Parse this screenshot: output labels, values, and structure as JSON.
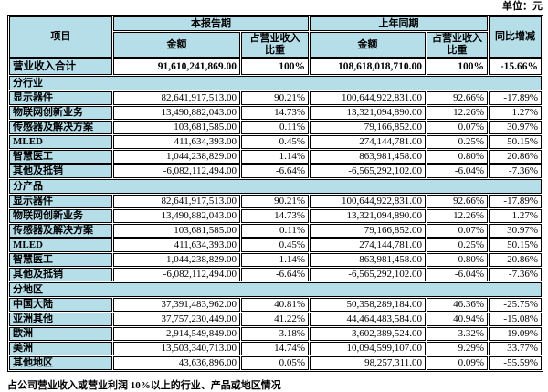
{
  "unit_label": "单位：元",
  "footer_note": "占公司营业收入或营业利润 10%以上的行业、产品或地区情况",
  "colors": {
    "header_bg": "#b6dee9",
    "border": "#000000",
    "page_bg": "#ffffff"
  },
  "table": {
    "headers": {
      "item": "项目",
      "current_period": "本报告期",
      "prior_period": "上年同期",
      "amount": "金额",
      "pct_of_revenue": "占营业收入\n比重",
      "yoy_change": "同比增减"
    },
    "total_row": {
      "label": "营业收入合计",
      "current_amount": "91,610,241,869.00",
      "current_pct": "100%",
      "prior_amount": "108,618,018,710.00",
      "prior_pct": "100%",
      "yoy": "-15.66%"
    },
    "sections": [
      {
        "title": "分行业",
        "rows": [
          [
            "显示器件",
            "82,641,917,513.00",
            "90.21%",
            "100,644,922,831.00",
            "92.66%",
            "-17.89%"
          ],
          [
            "物联网创新业务",
            "13,490,882,043.00",
            "14.73%",
            "13,321,094,890.00",
            "12.26%",
            "1.27%"
          ],
          [
            "传感器及解决方案",
            "103,681,585.00",
            "0.11%",
            "79,166,852.00",
            "0.07%",
            "30.97%"
          ],
          [
            "MLED",
            "411,634,393.00",
            "0.45%",
            "274,144,781.00",
            "0.25%",
            "50.15%"
          ],
          [
            "智慧医工",
            "1,044,238,829.00",
            "1.14%",
            "863,981,458.00",
            "0.80%",
            "20.86%"
          ],
          [
            "其他及抵销",
            "-6,082,112,494.00",
            "-6.64%",
            "-6,565,292,102.00",
            "-6.04%",
            "-7.36%"
          ]
        ]
      },
      {
        "title": "分产品",
        "rows": [
          [
            "显示器件",
            "82,641,917,513.00",
            "90.21%",
            "100,644,922,831.00",
            "92.66%",
            "-17.89%"
          ],
          [
            "物联网创新业务",
            "13,490,882,043.00",
            "14.73%",
            "13,321,094,890.00",
            "12.26%",
            "1.27%"
          ],
          [
            "传感器及解决方案",
            "103,681,585.00",
            "0.11%",
            "79,166,852.00",
            "0.07%",
            "30.97%"
          ],
          [
            "MLED",
            "411,634,393.00",
            "0.45%",
            "274,144,781.00",
            "0.25%",
            "50.15%"
          ],
          [
            "智慧医工",
            "1,044,238,829.00",
            "1.14%",
            "863,981,458.00",
            "0.80%",
            "20.86%"
          ],
          [
            "其他及抵销",
            "-6,082,112,494.00",
            "-6.64%",
            "-6,565,292,102.00",
            "-6.04%",
            "-7.36%"
          ]
        ]
      },
      {
        "title": "分地区",
        "rows": [
          [
            "中国大陆",
            "37,391,483,962.00",
            "40.81%",
            "50,358,289,184.00",
            "46.36%",
            "-25.75%"
          ],
          [
            "亚洲其他",
            "37,757,230,449.00",
            "41.22%",
            "44,464,483,584.00",
            "40.94%",
            "-15.08%"
          ],
          [
            "欧洲",
            "2,914,549,849.00",
            "3.18%",
            "3,602,389,524.00",
            "3.32%",
            "-19.09%"
          ],
          [
            "美洲",
            "13,503,340,713.00",
            "14.74%",
            "10,094,599,107.00",
            "9.29%",
            "33.77%"
          ],
          [
            "其他地区",
            "43,636,896.00",
            "0.05%",
            "98,257,311.00",
            "0.09%",
            "-55.59%"
          ]
        ]
      }
    ]
  }
}
